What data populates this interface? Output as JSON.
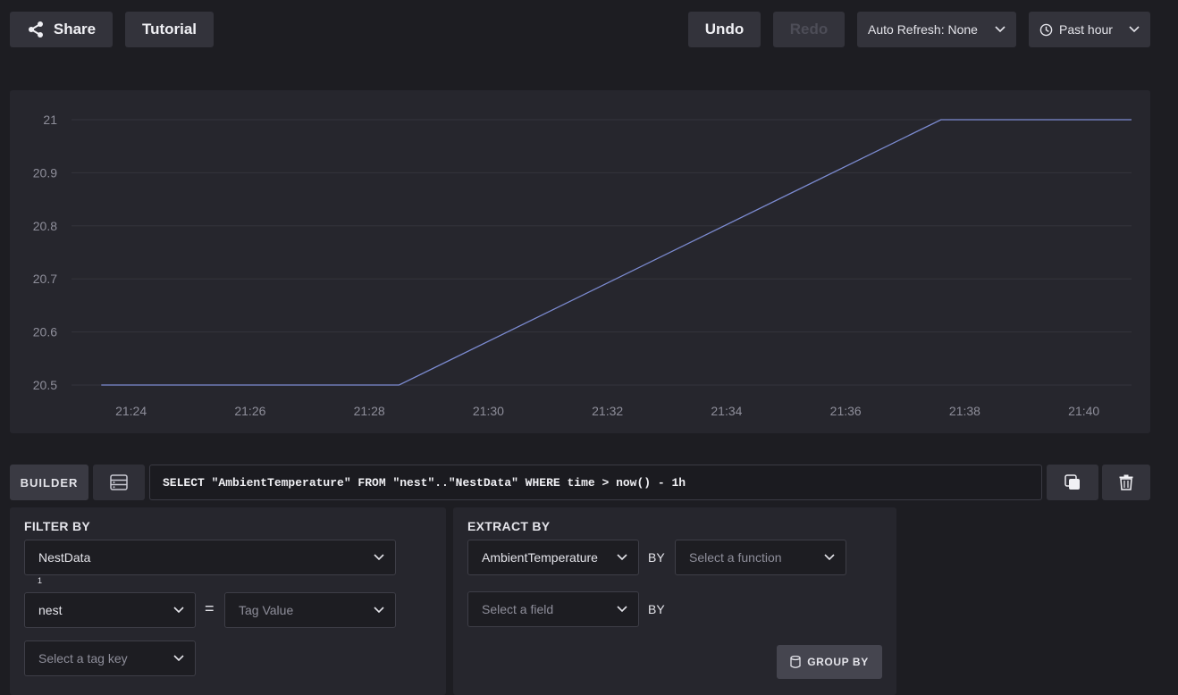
{
  "toolbar": {
    "share_label": "Share",
    "tutorial_label": "Tutorial",
    "undo_label": "Undo",
    "redo_label": "Redo",
    "auto_refresh_label": "Auto Refresh: None",
    "time_range_label": "Past hour"
  },
  "chart_data": {
    "type": "line",
    "x": [
      "21:23.5",
      "21:28.5",
      "21:37.6",
      "21:40.8"
    ],
    "x_minutes": [
      23.5,
      28.5,
      37.6,
      40.8
    ],
    "series": [
      {
        "values": [
          20.5,
          20.5,
          21.0,
          21.0
        ],
        "color": "#7c8bd1"
      }
    ],
    "xlim_minutes": [
      23.0,
      40.8
    ],
    "ylim": [
      20.5,
      21.0
    ],
    "y_ticks": [
      20.5,
      20.6,
      20.7,
      20.8,
      20.9,
      21
    ],
    "y_tick_labels": [
      "20.5",
      "20.6",
      "20.7",
      "20.8",
      "20.9",
      "21"
    ],
    "x_ticks_minutes": [
      24,
      26,
      28,
      30,
      32,
      34,
      36,
      38,
      40
    ],
    "x_tick_labels": [
      "21:24",
      "21:26",
      "21:28",
      "21:30",
      "21:32",
      "21:34",
      "21:36",
      "21:38",
      "21:40"
    ],
    "grid": true
  },
  "query": {
    "builder_tab_label": "BUILDER",
    "text": "SELECT \"AmbientTemperature\" FROM \"nest\"..\"NestData\" WHERE time > now() - 1h"
  },
  "filter": {
    "title": "FILTER BY",
    "measurement": "NestData",
    "tag_count": "1",
    "tag_key": "nest",
    "equals": "=",
    "tag_value_placeholder": "Tag Value",
    "tag_key_placeholder": "Select a tag key"
  },
  "extract": {
    "title": "EXTRACT BY",
    "field": "AmbientTemperature",
    "by_label_1": "BY",
    "function_placeholder": "Select a function",
    "field_placeholder": "Select a field",
    "by_label_2": "BY",
    "group_by_label": "GROUP BY"
  },
  "colors": {
    "background": "#1d1d22",
    "panel": "#26262d",
    "line": "#7c8bd1"
  }
}
